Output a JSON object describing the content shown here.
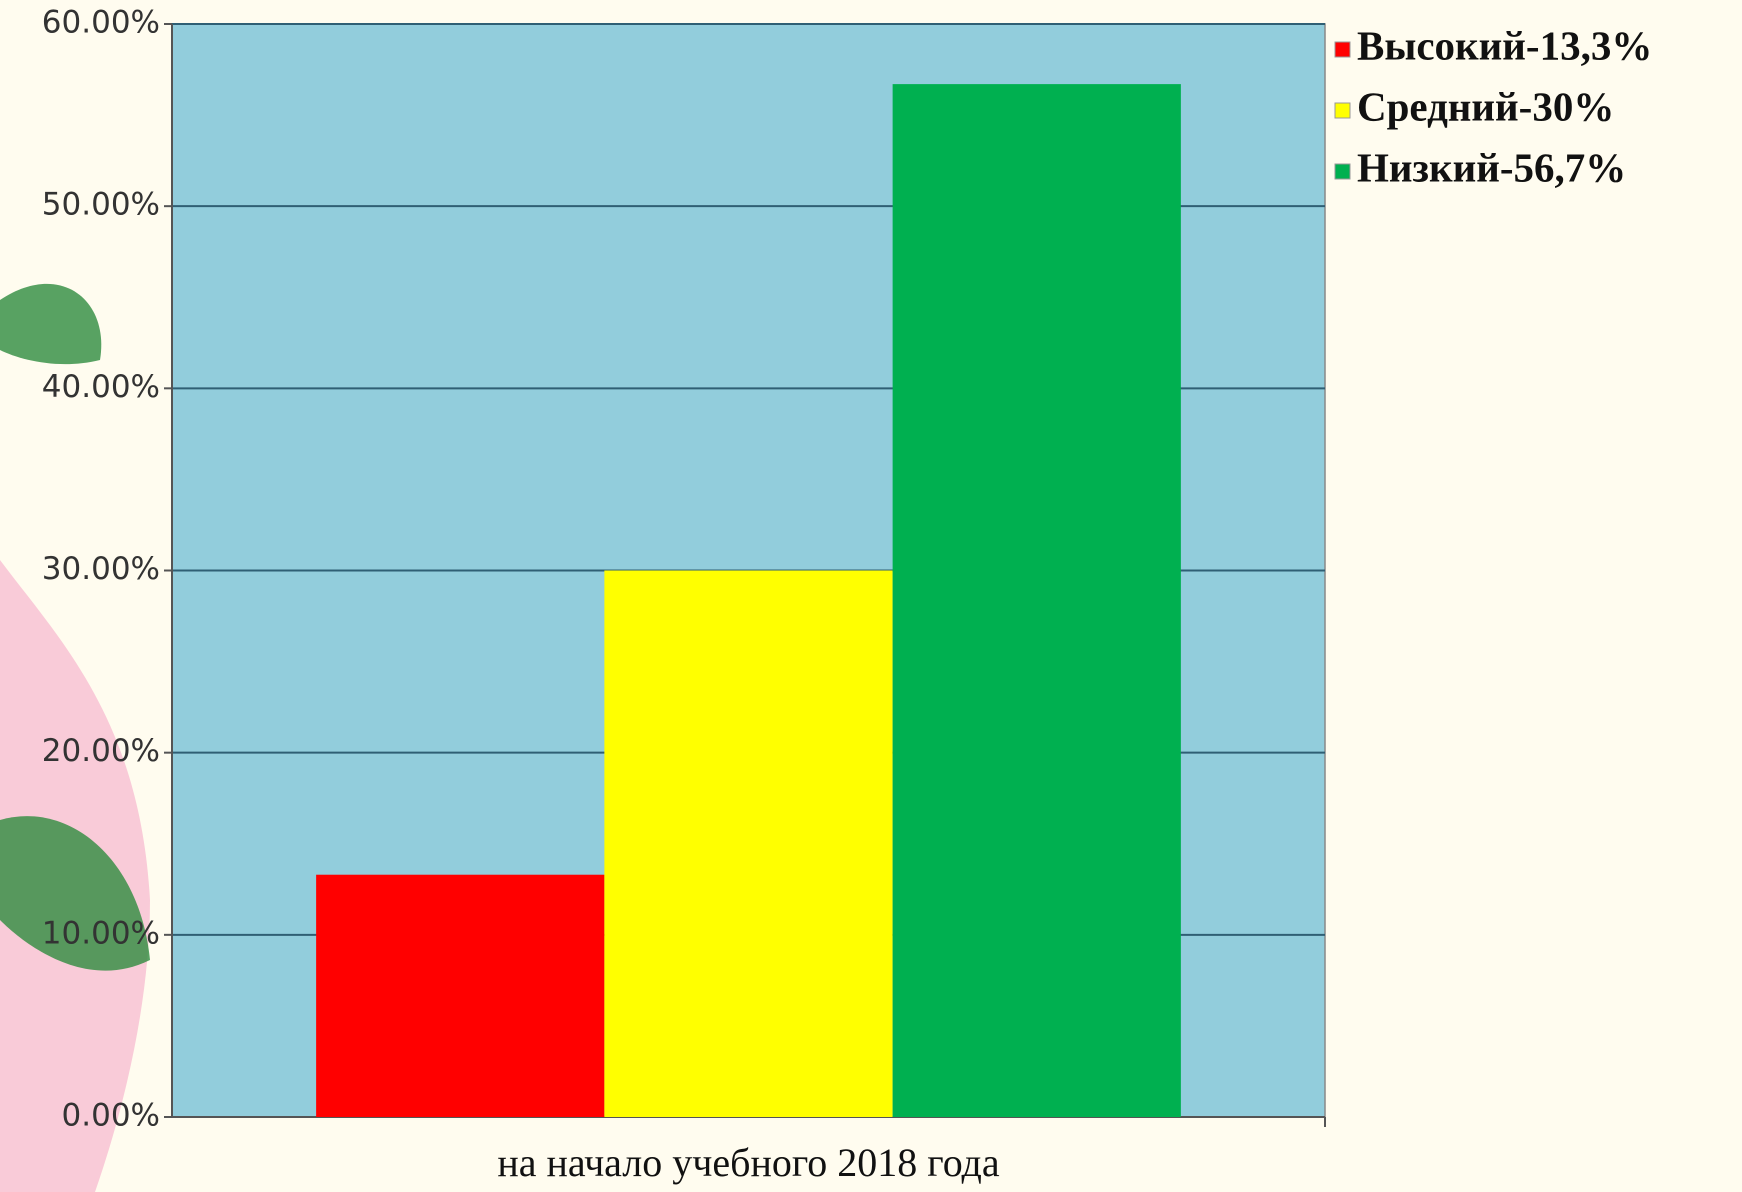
{
  "chart_data": {
    "type": "bar",
    "categories": [
      "на начало учебного 2018 года"
    ],
    "series": [
      {
        "name": "Высокий-13,3%",
        "color": "#ff0000",
        "values": [
          13.3
        ]
      },
      {
        "name": "Средний-30%",
        "color": "#ffff00",
        "values": [
          30
        ]
      },
      {
        "name": "Низкий-56,7%",
        "color": "#00b050",
        "values": [
          56.7
        ]
      }
    ],
    "ylim": [
      0,
      60
    ],
    "yticks": [
      {
        "value": 0,
        "label": "0.00%"
      },
      {
        "value": 10,
        "label": "10.00%"
      },
      {
        "value": 20,
        "label": "20.00%"
      },
      {
        "value": 30,
        "label": "30.00%"
      },
      {
        "value": 40,
        "label": "40.00%"
      },
      {
        "value": 50,
        "label": "50.00%"
      },
      {
        "value": 60,
        "label": "60.00%"
      }
    ],
    "grid": true,
    "legend": "right",
    "plot_background": "#92cddc"
  }
}
